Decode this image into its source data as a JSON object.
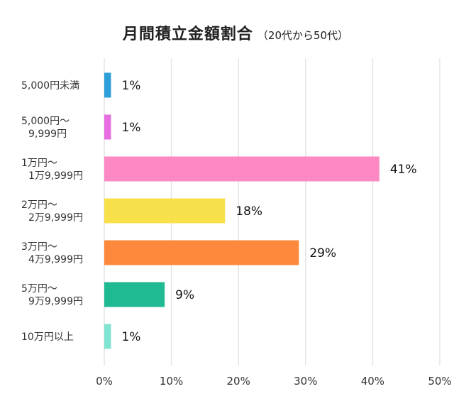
{
  "chart_data": {
    "type": "bar",
    "orientation": "horizontal",
    "title": "月間積立金額割合",
    "subtitle": "（20代から50代）",
    "categories": [
      [
        "5,000円未満"
      ],
      [
        "5,000円〜",
        "9,999円"
      ],
      [
        "1万円〜",
        "1万9,999円"
      ],
      [
        "2万円〜",
        "2万9,999円"
      ],
      [
        "3万円〜",
        "4万9,999円"
      ],
      [
        "5万円〜",
        "9万9,999円"
      ],
      [
        "10万円以上"
      ]
    ],
    "values": [
      1,
      1,
      41,
      18,
      29,
      9,
      1
    ],
    "value_labels": [
      "1%",
      "1%",
      "41%",
      "18%",
      "29%",
      "9%",
      "1%"
    ],
    "colors": [
      "#2e9fd9",
      "#e66ee0",
      "#fc88c4",
      "#f8e04a",
      "#fd8a3c",
      "#1fba91",
      "#7fe4d1"
    ],
    "xlim": [
      0,
      50
    ],
    "xticks": [
      0,
      10,
      20,
      30,
      40,
      50
    ],
    "xtick_labels": [
      "0%",
      "10%",
      "20%",
      "30%",
      "40%",
      "50%"
    ],
    "grid": true,
    "legend": "none"
  }
}
